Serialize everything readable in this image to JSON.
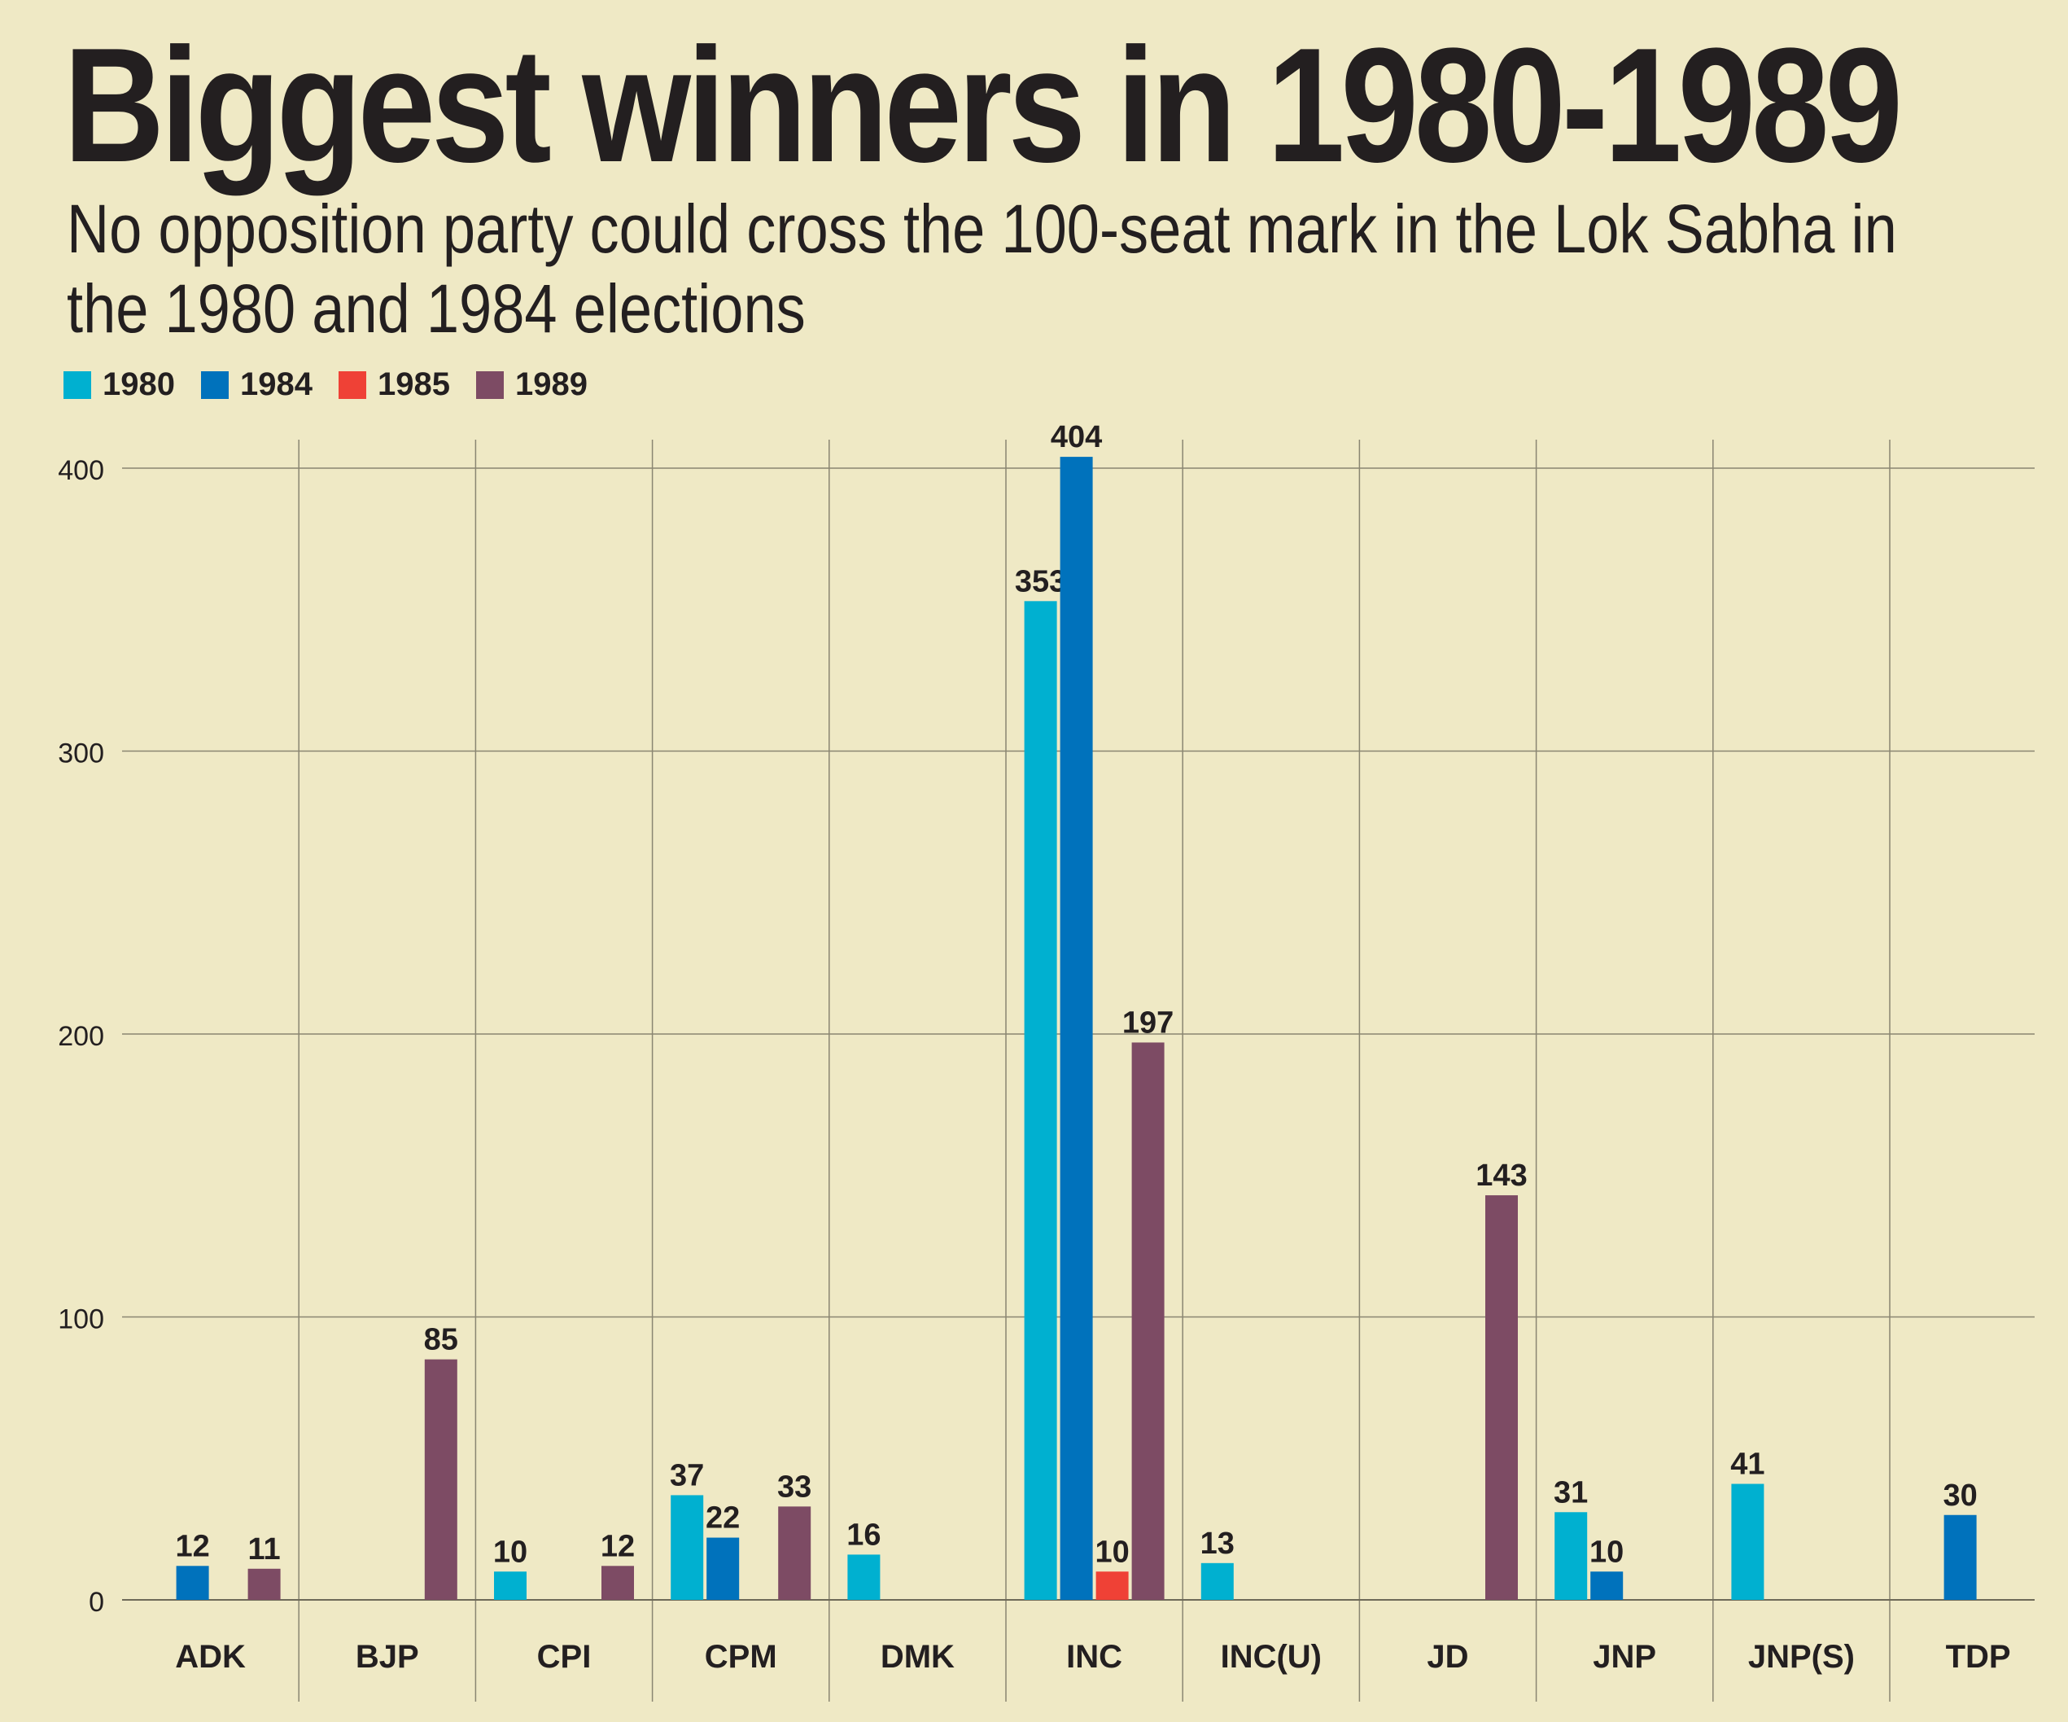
{
  "title": "Biggest winners in 1980-1989",
  "subtitle": "No opposition party could cross the 100-seat mark in the Lok Sabha in the 1980 and 1984 elections",
  "chart_data": {
    "type": "bar",
    "title": "Biggest winners in 1980-1989",
    "subtitle": "No opposition party could cross the 100-seat mark in the Lok Sabha in the 1980 and 1984 elections",
    "xlabel": "",
    "ylabel": "",
    "ylim": [
      0,
      400
    ],
    "yticks": [
      "0",
      "100",
      "200",
      "300",
      "400"
    ],
    "grid": true,
    "legend_position": "top-left",
    "categories": [
      "ADK",
      "BJP",
      "CPI",
      "CPM",
      "DMK",
      "INC",
      "INC(U)",
      "JD",
      "JNP",
      "JNP(S)",
      "TDP"
    ],
    "series": [
      {
        "name": "1980",
        "color": "#00b0d0",
        "values": [
          null,
          null,
          10,
          37,
          16,
          353,
          13,
          null,
          31,
          41,
          null
        ]
      },
      {
        "name": "1984",
        "color": "#0072bc",
        "values": [
          12,
          null,
          null,
          22,
          null,
          404,
          null,
          null,
          10,
          null,
          30
        ]
      },
      {
        "name": "1985",
        "color": "#ef4136",
        "values": [
          null,
          null,
          null,
          null,
          null,
          10,
          null,
          null,
          null,
          null,
          null
        ]
      },
      {
        "name": "1989",
        "color": "#7d4b64",
        "values": [
          11,
          85,
          12,
          33,
          null,
          197,
          null,
          143,
          null,
          null,
          null
        ]
      }
    ]
  }
}
